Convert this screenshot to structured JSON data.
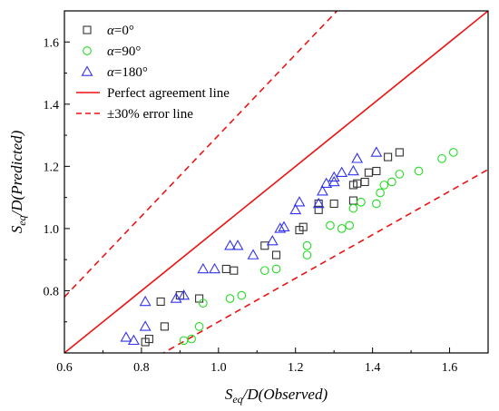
{
  "chart_data": {
    "type": "scatter",
    "xlim": [
      0.6,
      1.7
    ],
    "ylim": [
      0.6,
      1.7
    ],
    "x_ticks": [
      0.6,
      0.8,
      1.0,
      1.2,
      1.4,
      1.6
    ],
    "y_ticks": [
      0.8,
      1.0,
      1.2,
      1.4,
      1.6
    ],
    "x_tick_labels": [
      "0.6",
      "0.8",
      "1.0",
      "1.2",
      "1.4",
      "1.6"
    ],
    "y_tick_labels": [
      "0.8",
      "1.0",
      "1.2",
      "1.4",
      "1.6"
    ],
    "xlabel": {
      "sym": "S",
      "sub": "eq",
      "rest": "/D(Observed)"
    },
    "ylabel": {
      "sym": "S",
      "sub": "eq",
      "rest": "/D(Predicted)"
    },
    "grid": false,
    "legend_placement": "top-left",
    "series": [
      {
        "name_symbol": "α",
        "name_rest": "=0°",
        "marker": "square",
        "color": "#333333",
        "points": [
          [
            0.81,
            0.635
          ],
          [
            0.82,
            0.645
          ],
          [
            0.86,
            0.685
          ],
          [
            0.85,
            0.765
          ],
          [
            0.9,
            0.785
          ],
          [
            0.95,
            0.775
          ],
          [
            1.02,
            0.87
          ],
          [
            1.04,
            0.865
          ],
          [
            1.12,
            0.945
          ],
          [
            1.15,
            0.915
          ],
          [
            1.21,
            0.995
          ],
          [
            1.22,
            1.005
          ],
          [
            1.26,
            1.06
          ],
          [
            1.26,
            1.08
          ],
          [
            1.3,
            1.08
          ],
          [
            1.35,
            1.09
          ],
          [
            1.35,
            1.14
          ],
          [
            1.36,
            1.145
          ],
          [
            1.38,
            1.15
          ],
          [
            1.39,
            1.18
          ],
          [
            1.41,
            1.185
          ],
          [
            1.44,
            1.23
          ],
          [
            1.47,
            1.245
          ]
        ]
      },
      {
        "name_symbol": "α",
        "name_rest": "=90°",
        "marker": "circle",
        "color": "#22dd22",
        "points": [
          [
            0.91,
            0.64
          ],
          [
            0.93,
            0.645
          ],
          [
            0.95,
            0.685
          ],
          [
            0.96,
            0.76
          ],
          [
            1.03,
            0.775
          ],
          [
            1.06,
            0.785
          ],
          [
            1.12,
            0.865
          ],
          [
            1.15,
            0.87
          ],
          [
            1.23,
            0.915
          ],
          [
            1.23,
            0.945
          ],
          [
            1.29,
            1.01
          ],
          [
            1.32,
            1.0
          ],
          [
            1.34,
            1.01
          ],
          [
            1.35,
            1.065
          ],
          [
            1.37,
            1.085
          ],
          [
            1.41,
            1.08
          ],
          [
            1.42,
            1.115
          ],
          [
            1.43,
            1.14
          ],
          [
            1.45,
            1.15
          ],
          [
            1.47,
            1.175
          ],
          [
            1.52,
            1.185
          ],
          [
            1.58,
            1.225
          ],
          [
            1.61,
            1.245
          ]
        ]
      },
      {
        "name_symbol": "α",
        "name_rest": "=180°",
        "marker": "triangle",
        "color": "#3333ee",
        "points": [
          [
            0.76,
            0.65
          ],
          [
            0.78,
            0.64
          ],
          [
            0.81,
            0.685
          ],
          [
            0.81,
            0.765
          ],
          [
            0.89,
            0.775
          ],
          [
            0.91,
            0.785
          ],
          [
            0.96,
            0.87
          ],
          [
            0.99,
            0.87
          ],
          [
            1.03,
            0.945
          ],
          [
            1.05,
            0.945
          ],
          [
            1.09,
            0.915
          ],
          [
            1.14,
            0.96
          ],
          [
            1.16,
            1.0
          ],
          [
            1.17,
            1.005
          ],
          [
            1.2,
            1.06
          ],
          [
            1.21,
            1.085
          ],
          [
            1.26,
            1.08
          ],
          [
            1.27,
            1.12
          ],
          [
            1.28,
            1.145
          ],
          [
            1.3,
            1.15
          ],
          [
            1.3,
            1.165
          ],
          [
            1.32,
            1.18
          ],
          [
            1.35,
            1.185
          ],
          [
            1.36,
            1.225
          ],
          [
            1.41,
            1.245
          ]
        ]
      }
    ],
    "lines": [
      {
        "label": "Perfect agreement line",
        "style": "solid",
        "color": "#ee1111",
        "slope": 1.0
      },
      {
        "label": "±30% error line",
        "style": "dashed",
        "color": "#ee1111",
        "slopes": [
          1.3,
          0.7
        ]
      }
    ]
  }
}
